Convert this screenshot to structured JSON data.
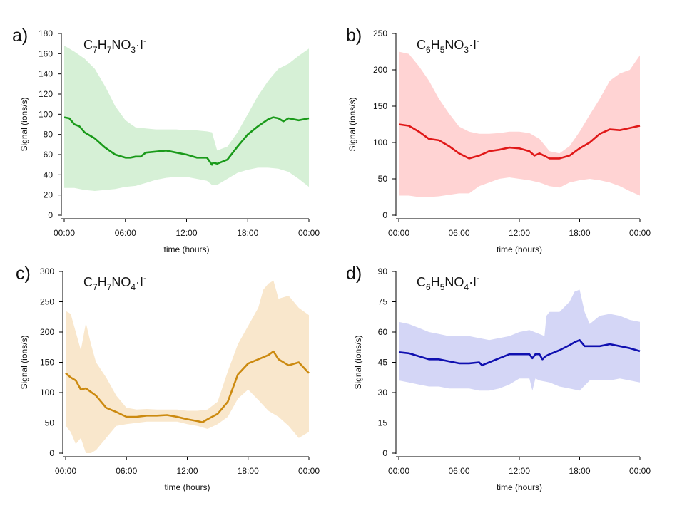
{
  "chart_data": [
    {
      "type": "area",
      "panel_label": "a)",
      "formula": {
        "parts": [
          [
            "C",
            ""
          ],
          [
            "7",
            "sub"
          ],
          [
            "H",
            ""
          ],
          [
            "7",
            "sub"
          ],
          [
            "NO",
            ""
          ],
          [
            "3",
            "sub"
          ],
          [
            "·I",
            ""
          ],
          [
            "-",
            "sup"
          ]
        ]
      },
      "color": "#1a9a1a",
      "band_color": "#d6f0d6",
      "xlabel": "time (hours)",
      "ylabel": "Signal (ions/s)",
      "xlim": [
        0,
        24
      ],
      "ylim": [
        0,
        180
      ],
      "yticks": [
        "0",
        "20",
        "40",
        "60",
        "80",
        "100",
        "120",
        "140",
        "160",
        "180"
      ],
      "xticks": [
        "00:00",
        "06:00",
        "12:00",
        "18:00",
        "00:00"
      ],
      "series": [
        {
          "name": "mean",
          "x": [
            0,
            0.5,
            1,
            1.5,
            2,
            3,
            4,
            5,
            6,
            6.5,
            7,
            7.5,
            8,
            9,
            10,
            11,
            12,
            13,
            14,
            14.5,
            14.6,
            15,
            16,
            17,
            18,
            19,
            20,
            20.5,
            21,
            21.5,
            22,
            23,
            24
          ],
          "values": [
            97,
            96,
            90,
            88,
            82,
            76,
            67,
            60,
            57,
            57,
            58,
            58,
            62,
            63,
            64,
            62,
            60,
            57,
            57,
            50,
            52,
            51,
            55,
            68,
            80,
            88,
            95,
            97,
            96,
            93,
            96,
            94,
            96
          ]
        },
        {
          "name": "upper",
          "x": [
            0,
            1,
            2,
            3,
            4,
            5,
            6,
            7,
            8,
            9,
            10,
            11,
            12,
            13,
            14,
            14.5,
            15,
            16,
            17,
            18,
            19,
            20,
            21,
            22,
            23,
            24
          ],
          "values": [
            168,
            162,
            155,
            145,
            128,
            108,
            94,
            87,
            86,
            85,
            85,
            85,
            84,
            84,
            83,
            82,
            64,
            68,
            82,
            100,
            118,
            133,
            145,
            150,
            158,
            165
          ]
        },
        {
          "name": "lower",
          "x": [
            0,
            1,
            2,
            3,
            4,
            5,
            6,
            7,
            8,
            9,
            10,
            11,
            12,
            13,
            14,
            14.5,
            15,
            16,
            17,
            18,
            19,
            20,
            21,
            22,
            23,
            24
          ],
          "values": [
            27,
            27,
            25,
            24,
            25,
            26,
            28,
            29,
            32,
            35,
            37,
            38,
            38,
            36,
            34,
            30,
            30,
            36,
            42,
            45,
            47,
            47,
            46,
            43,
            36,
            28
          ]
        }
      ]
    },
    {
      "type": "area",
      "panel_label": "b)",
      "formula": {
        "parts": [
          [
            "C",
            ""
          ],
          [
            "6",
            "sub"
          ],
          [
            "H",
            ""
          ],
          [
            "5",
            "sub"
          ],
          [
            "NO",
            ""
          ],
          [
            "3",
            "sub"
          ],
          [
            "·I",
            ""
          ],
          [
            "-",
            "sup"
          ]
        ]
      },
      "color": "#e01818",
      "band_color": "#ffd3d3",
      "xlabel": "time (hours)",
      "ylabel": "Signal (ions/s)",
      "xlim": [
        0,
        24
      ],
      "ylim": [
        0,
        250
      ],
      "yticks": [
        "0",
        "50",
        "100",
        "150",
        "200",
        "250"
      ],
      "xticks": [
        "00:00",
        "06:00",
        "12:00",
        "18:00",
        "00:00"
      ],
      "series": [
        {
          "name": "mean",
          "x": [
            0,
            1,
            2,
            3,
            4,
            5,
            6,
            7,
            8,
            9,
            10,
            11,
            12,
            13,
            13.5,
            14,
            15,
            16,
            17,
            18,
            19,
            20,
            21,
            22,
            23,
            24
          ],
          "values": [
            125,
            123,
            115,
            105,
            103,
            95,
            85,
            78,
            82,
            88,
            90,
            93,
            92,
            88,
            82,
            85,
            78,
            78,
            82,
            92,
            100,
            112,
            118,
            117,
            120,
            123
          ]
        },
        {
          "name": "upper",
          "x": [
            0,
            1,
            2,
            3,
            4,
            5,
            6,
            7,
            8,
            9,
            10,
            11,
            12,
            13,
            14,
            15,
            16,
            17,
            18,
            19,
            20,
            21,
            22,
            23,
            24
          ],
          "values": [
            225,
            222,
            205,
            185,
            160,
            140,
            122,
            115,
            112,
            112,
            113,
            115,
            115,
            113,
            105,
            88,
            85,
            95,
            115,
            138,
            160,
            185,
            195,
            200,
            220
          ]
        },
        {
          "name": "lower",
          "x": [
            0,
            1,
            2,
            3,
            4,
            5,
            6,
            7,
            8,
            9,
            10,
            11,
            12,
            13,
            14,
            15,
            16,
            17,
            18,
            19,
            20,
            21,
            22,
            23,
            24
          ],
          "values": [
            27,
            27,
            25,
            25,
            26,
            28,
            30,
            30,
            40,
            45,
            50,
            52,
            50,
            48,
            45,
            40,
            38,
            45,
            48,
            50,
            48,
            45,
            40,
            33,
            27
          ]
        }
      ]
    },
    {
      "type": "area",
      "panel_label": "c)",
      "formula": {
        "parts": [
          [
            "C",
            ""
          ],
          [
            "7",
            "sub"
          ],
          [
            "H",
            ""
          ],
          [
            "7",
            "sub"
          ],
          [
            "NO",
            ""
          ],
          [
            "4",
            "sub"
          ],
          [
            "·I",
            ""
          ],
          [
            "-",
            "sup"
          ]
        ]
      },
      "color": "#cc8a10",
      "band_color": "#f9e7cc",
      "xlabel": "time (hours)",
      "ylabel": "Signal (ions/s)",
      "xlim": [
        0,
        24
      ],
      "ylim": [
        0,
        300
      ],
      "yticks": [
        "0",
        "50",
        "100",
        "150",
        "200",
        "250",
        "300"
      ],
      "xticks": [
        "00:00",
        "06:00",
        "12:00",
        "18:00",
        "00:00"
      ],
      "series": [
        {
          "name": "mean",
          "x": [
            0,
            0.5,
            1,
            1.5,
            2,
            3,
            4,
            5,
            6,
            7,
            8,
            9,
            10,
            11,
            12,
            13,
            13.5,
            14,
            15,
            16,
            17,
            18,
            19,
            20,
            20.5,
            21,
            22,
            23,
            24
          ],
          "values": [
            132,
            125,
            120,
            105,
            107,
            95,
            75,
            68,
            60,
            60,
            62,
            62,
            63,
            60,
            56,
            53,
            51,
            56,
            65,
            85,
            130,
            148,
            155,
            162,
            168,
            155,
            145,
            150,
            132
          ]
        },
        {
          "name": "upper",
          "x": [
            0,
            0.5,
            1,
            1.5,
            2,
            2.5,
            3,
            4,
            5,
            6,
            7,
            8,
            9,
            10,
            11,
            12,
            13,
            14,
            15,
            16,
            17,
            18,
            19,
            19.5,
            20,
            20.5,
            21,
            22,
            23,
            24
          ],
          "values": [
            235,
            230,
            200,
            170,
            215,
            180,
            150,
            125,
            95,
            75,
            72,
            73,
            72,
            72,
            72,
            70,
            70,
            72,
            85,
            135,
            180,
            210,
            240,
            270,
            280,
            285,
            255,
            260,
            240,
            228
          ]
        },
        {
          "name": "lower",
          "x": [
            0,
            0.5,
            1,
            1.5,
            2,
            2.5,
            3,
            4,
            5,
            6,
            7,
            8,
            9,
            10,
            11,
            12,
            13,
            14,
            15,
            16,
            17,
            18,
            19,
            20,
            21,
            22,
            23,
            24
          ],
          "values": [
            45,
            35,
            15,
            25,
            0,
            0,
            5,
            25,
            45,
            48,
            50,
            52,
            52,
            52,
            52,
            48,
            45,
            40,
            48,
            60,
            90,
            105,
            88,
            70,
            60,
            45,
            25,
            35
          ]
        }
      ]
    },
    {
      "type": "area",
      "panel_label": "d)",
      "formula": {
        "parts": [
          [
            "C",
            ""
          ],
          [
            "6",
            "sub"
          ],
          [
            "H",
            ""
          ],
          [
            "5",
            "sub"
          ],
          [
            "NO",
            ""
          ],
          [
            "4",
            "sub"
          ],
          [
            "·I",
            ""
          ],
          [
            "-",
            "sup"
          ]
        ]
      },
      "color": "#1010b0",
      "band_color": "#d4d6f6",
      "xlabel": "time (hours)",
      "ylabel": "Signal (ions/s)",
      "xlim": [
        0,
        24
      ],
      "ylim": [
        0,
        90
      ],
      "yticks": [
        "0",
        "15",
        "30",
        "45",
        "60",
        "75",
        "90"
      ],
      "xticks": [
        "00:00",
        "06:00",
        "12:00",
        "18:00",
        "00:00"
      ],
      "series": [
        {
          "name": "mean",
          "x": [
            0,
            1,
            2,
            3,
            4,
            5,
            6,
            7,
            8,
            8.3,
            8.5,
            9,
            10,
            11,
            12,
            13,
            13.3,
            13.6,
            14,
            14.3,
            14.6,
            15,
            16,
            17,
            17.5,
            18,
            18.5,
            19,
            20,
            21,
            22,
            23,
            24
          ],
          "values": [
            50,
            49.5,
            48,
            46.5,
            46.5,
            45.5,
            44.5,
            44.5,
            45,
            43.5,
            44,
            45,
            47,
            49,
            49,
            49,
            47,
            49,
            49,
            46.5,
            48,
            49,
            51,
            53.5,
            55,
            56,
            53,
            53,
            53,
            54,
            53,
            52,
            50.5
          ]
        },
        {
          "name": "upper",
          "x": [
            0,
            1,
            2,
            3,
            4,
            5,
            6,
            7,
            8,
            9,
            10,
            11,
            12,
            13,
            14,
            14.5,
            14.7,
            15,
            16,
            17,
            17.5,
            18,
            18.5,
            19,
            20,
            21,
            22,
            23,
            24
          ],
          "values": [
            65,
            64,
            62,
            60,
            59,
            58,
            58,
            58,
            57,
            56,
            57,
            58,
            60,
            61,
            59,
            58,
            68,
            70,
            70,
            75,
            80,
            81,
            70,
            64,
            68,
            69,
            68,
            66,
            65
          ]
        },
        {
          "name": "lower",
          "x": [
            0,
            1,
            2,
            3,
            4,
            5,
            6,
            7,
            8,
            9,
            10,
            11,
            12,
            13,
            13.3,
            13.6,
            14,
            15,
            16,
            17,
            18,
            19,
            20,
            21,
            22,
            23,
            24
          ],
          "values": [
            36,
            35,
            34,
            33,
            33,
            32,
            32,
            32,
            31,
            31,
            32,
            34,
            37,
            37,
            31,
            37,
            36,
            35,
            33,
            32,
            31,
            36,
            36,
            36,
            37,
            36,
            35
          ]
        }
      ]
    }
  ]
}
